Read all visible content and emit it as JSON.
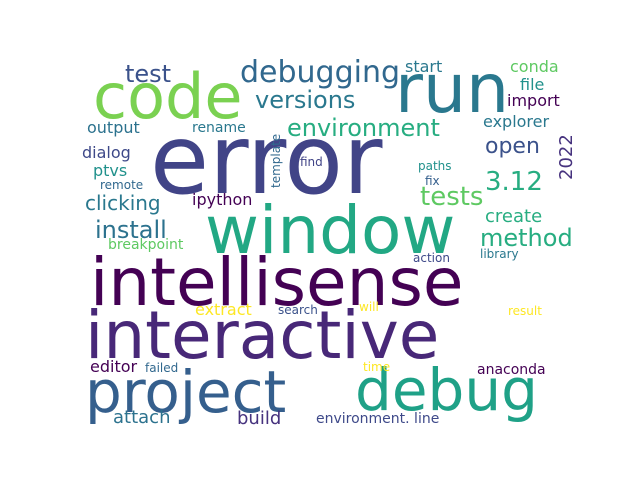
{
  "chart_data": {
    "type": "wordcloud",
    "title": "",
    "words": [
      {
        "text": "error",
        "color": "#414487"
      },
      {
        "text": "run",
        "color": "#2a788e"
      },
      {
        "text": "code",
        "color": "#7ad151"
      },
      {
        "text": "window",
        "color": "#22a884"
      },
      {
        "text": "intellisense",
        "color": "#440154"
      },
      {
        "text": "interactive",
        "color": "#482878"
      },
      {
        "text": "project",
        "color": "#355f8d"
      },
      {
        "text": "debug",
        "color": "#1fa187"
      },
      {
        "text": "debugging",
        "color": "#31688e"
      },
      {
        "text": "environment",
        "color": "#27ad81"
      },
      {
        "text": "versions",
        "color": "#2a788e"
      },
      {
        "text": "test",
        "color": "#3b528b"
      },
      {
        "text": "tests",
        "color": "#5ec962"
      },
      {
        "text": "3.12",
        "color": "#27ad81"
      },
      {
        "text": "install",
        "color": "#2c728e"
      },
      {
        "text": "method",
        "color": "#27ad81"
      },
      {
        "text": "open",
        "color": "#3b528b"
      },
      {
        "text": "clicking",
        "color": "#2a788e"
      },
      {
        "text": "start",
        "color": "#2a788e"
      },
      {
        "text": "conda",
        "color": "#5ec962"
      },
      {
        "text": "file",
        "color": "#21918c"
      },
      {
        "text": "import",
        "color": "#440154"
      },
      {
        "text": "explorer",
        "color": "#2a788e"
      },
      {
        "text": "2022",
        "color": "#46327e"
      },
      {
        "text": "output",
        "color": "#2c728e"
      },
      {
        "text": "rename",
        "color": "#2a788e"
      },
      {
        "text": "dialog",
        "color": "#3e4989"
      },
      {
        "text": "ptvs",
        "color": "#21918c"
      },
      {
        "text": "remote",
        "color": "#31688e"
      },
      {
        "text": "template",
        "color": "#31688e"
      },
      {
        "text": "find",
        "color": "#414487"
      },
      {
        "text": "paths",
        "color": "#21918c"
      },
      {
        "text": "fix",
        "color": "#355f8d"
      },
      {
        "text": "ipython",
        "color": "#440154"
      },
      {
        "text": "create",
        "color": "#27ad81"
      },
      {
        "text": "breakpoint",
        "color": "#5ec962"
      },
      {
        "text": "action",
        "color": "#3e4989"
      },
      {
        "text": "library",
        "color": "#2a788e"
      },
      {
        "text": "extract",
        "color": "#fde725"
      },
      {
        "text": "search",
        "color": "#3b528b"
      },
      {
        "text": "will",
        "color": "#fde725"
      },
      {
        "text": "result",
        "color": "#fde725"
      },
      {
        "text": "editor",
        "color": "#440154"
      },
      {
        "text": "failed",
        "color": "#31688e"
      },
      {
        "text": "time",
        "color": "#fde725"
      },
      {
        "text": "anaconda",
        "color": "#440154"
      },
      {
        "text": "attach",
        "color": "#2c728e"
      },
      {
        "text": "build",
        "color": "#46327e"
      },
      {
        "text": "environment. line",
        "color": "#3e4989"
      }
    ]
  }
}
